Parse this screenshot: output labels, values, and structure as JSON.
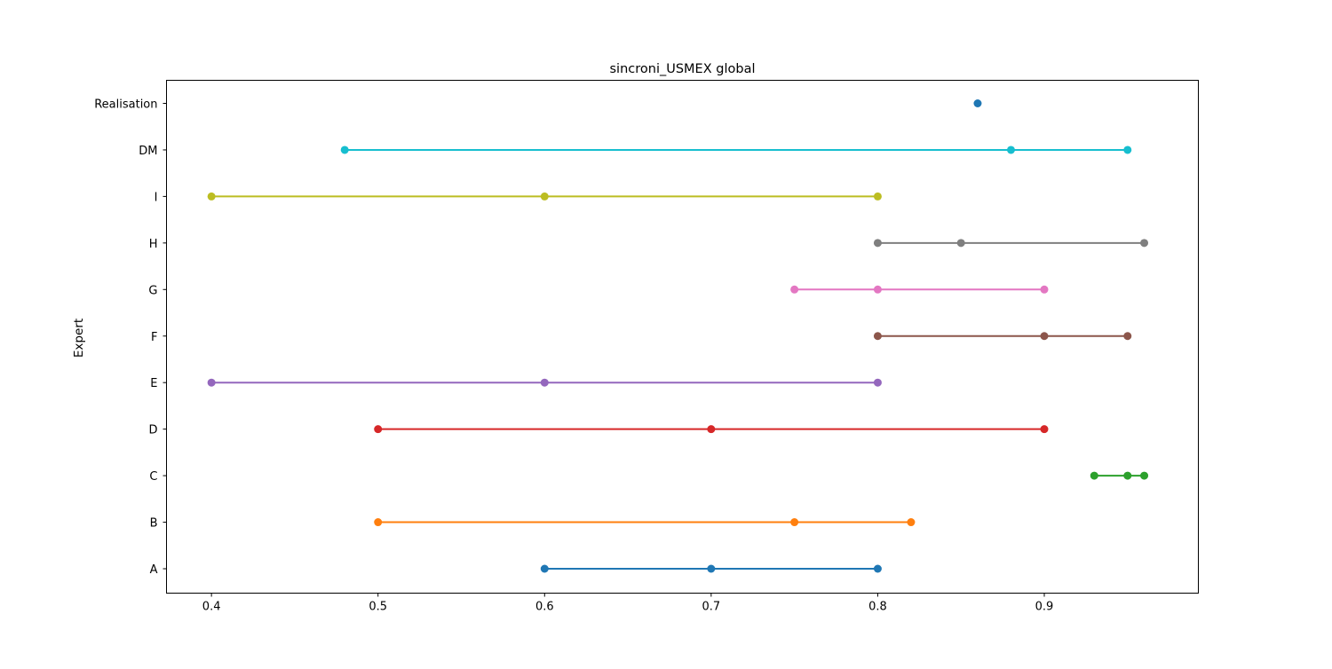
{
  "chart_data": {
    "type": "scatter",
    "title": "sincroni_USMEX global",
    "xlabel": "",
    "ylabel": "Expert",
    "xlim": [
      0.373,
      0.9925
    ],
    "xticks": [
      "0.4",
      "0.5",
      "0.6",
      "0.7",
      "0.8",
      "0.9"
    ],
    "xtick_values": [
      0.4,
      0.5,
      0.6,
      0.7,
      0.8,
      0.9
    ],
    "categories": [
      "A",
      "B",
      "C",
      "D",
      "E",
      "F",
      "G",
      "H",
      "I",
      "DM",
      "Realisation"
    ],
    "grid": false,
    "series": [
      {
        "category": "A",
        "values": [
          0.6,
          0.7,
          0.8
        ],
        "color": "#1f77b4"
      },
      {
        "category": "B",
        "values": [
          0.5,
          0.75,
          0.82
        ],
        "color": "#ff7f0e"
      },
      {
        "category": "C",
        "values": [
          0.93,
          0.95,
          0.96
        ],
        "color": "#2ca02c"
      },
      {
        "category": "D",
        "values": [
          0.5,
          0.7,
          0.9
        ],
        "color": "#d62728"
      },
      {
        "category": "E",
        "values": [
          0.4,
          0.6,
          0.8
        ],
        "color": "#9467bd"
      },
      {
        "category": "F",
        "values": [
          0.8,
          0.9,
          0.95
        ],
        "color": "#8c564b"
      },
      {
        "category": "G",
        "values": [
          0.75,
          0.8,
          0.9
        ],
        "color": "#e377c2"
      },
      {
        "category": "H",
        "values": [
          0.8,
          0.85,
          0.96
        ],
        "color": "#7f7f7f"
      },
      {
        "category": "I",
        "values": [
          0.4,
          0.6,
          0.8
        ],
        "color": "#bcbd22"
      },
      {
        "category": "DM",
        "values": [
          0.48,
          0.88,
          0.95
        ],
        "color": "#17becf"
      },
      {
        "category": "Realisation",
        "values": [
          0.86
        ],
        "color": "#1f77b4"
      }
    ]
  }
}
